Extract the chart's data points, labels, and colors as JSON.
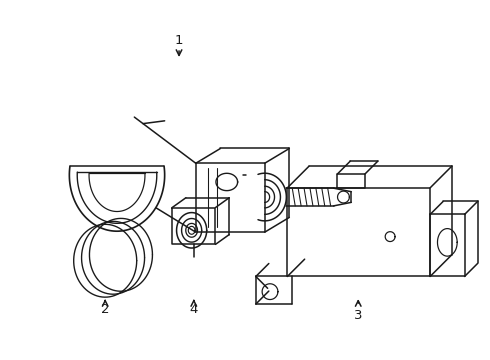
{
  "bg_color": "#ffffff",
  "line_color": "#1a1a1a",
  "line_width": 1.1,
  "fig_width": 4.9,
  "fig_height": 3.6,
  "dpi": 100
}
